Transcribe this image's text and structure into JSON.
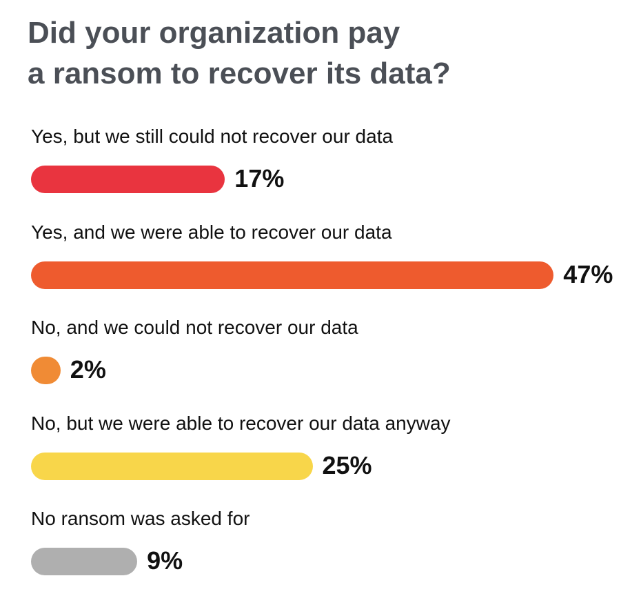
{
  "chart_data": {
    "type": "bar",
    "orientation": "horizontal",
    "title_lines": [
      "Did your organization pay",
      "a ransom to recover its data?"
    ],
    "categories": [
      "Yes, but we still could not recover our data",
      "Yes, and we were able to recover our data",
      "No, and we could not recover our data",
      "No, but we were able to recover our data anyway",
      "No ransom was asked for"
    ],
    "values": [
      17,
      47,
      2,
      25,
      9
    ],
    "value_labels": [
      "17%",
      "47%",
      "2%",
      "25%",
      "9%"
    ],
    "colors": [
      "#E9343F",
      "#EE5B2E",
      "#F08B35",
      "#F8D64A",
      "#AFAFAF"
    ],
    "unit": "%",
    "grid": false,
    "legend": "none"
  }
}
